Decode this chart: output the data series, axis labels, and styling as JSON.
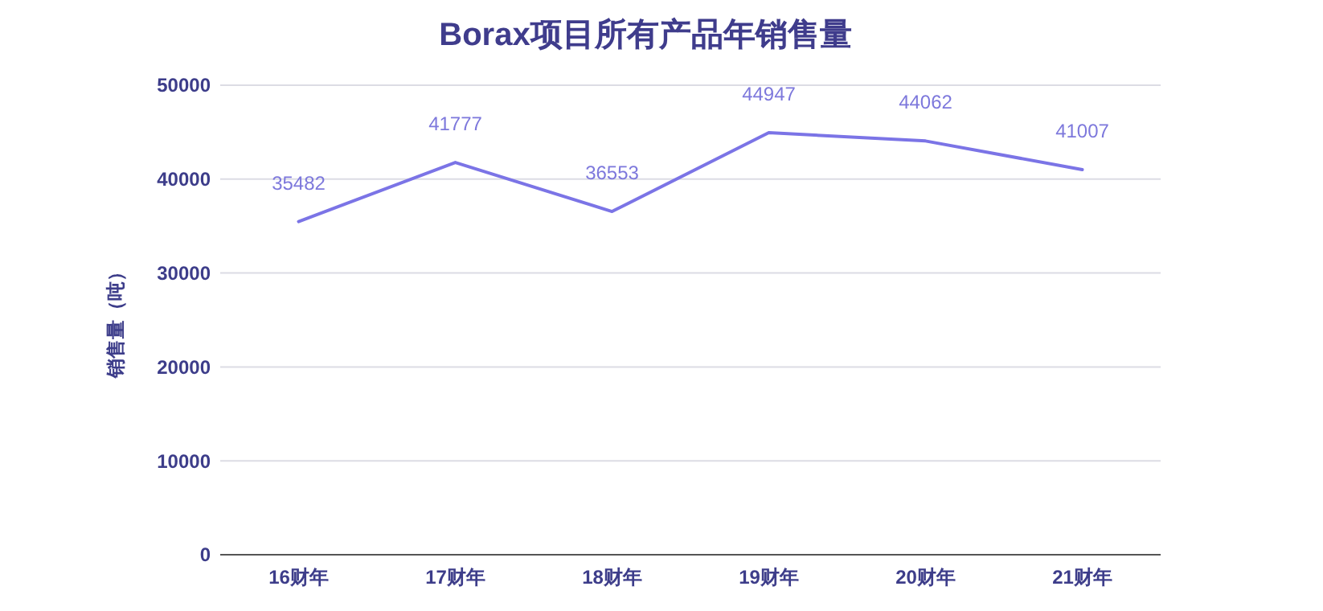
{
  "chart_data": {
    "type": "line",
    "title": "Borax项目所有产品年销售量",
    "ylabel": "销售量（吨）",
    "categories": [
      "16财年",
      "17财年",
      "18财年",
      "19财年",
      "20财年",
      "21财年"
    ],
    "series": [
      {
        "color": "#7b74e6",
        "values": [
          35482,
          41777,
          36553,
          44947,
          44062,
          41007
        ]
      }
    ],
    "ylim": [
      0,
      50000
    ],
    "yticks": [
      0,
      10000,
      20000,
      30000,
      40000,
      50000
    ],
    "grid": "y",
    "data_labels": true,
    "marker": "none",
    "line_style": "solid"
  }
}
